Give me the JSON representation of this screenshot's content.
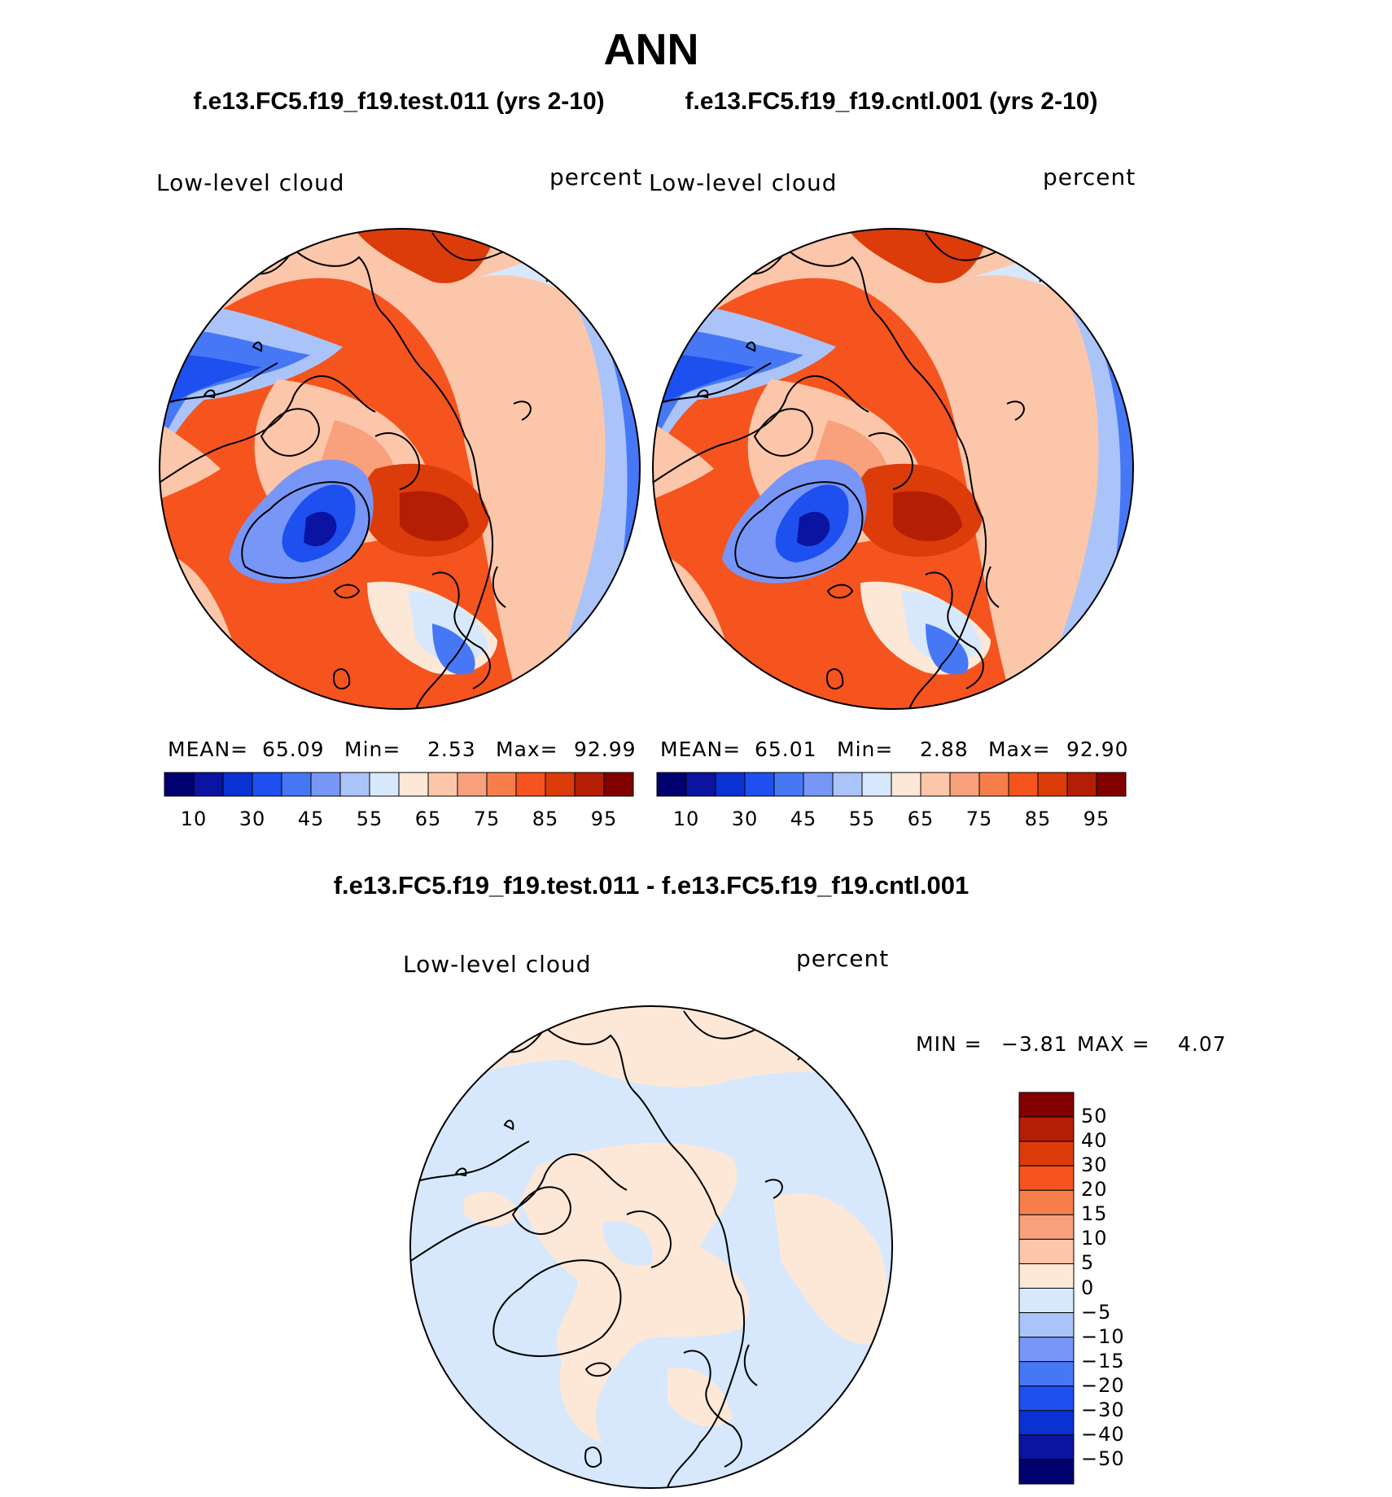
{
  "page_title": "ANN",
  "panels": [
    {
      "case_title": "f.e13.FC5.f19_f19.test.011 (yrs 2-10)",
      "field": "Low-level cloud",
      "units": "percent",
      "stats": {
        "mean_label": "MEAN=",
        "mean": "65.09",
        "min_label": "Min=",
        "min": "2.53",
        "max_label": "Max=",
        "max": "92.99"
      }
    },
    {
      "case_title": "f.e13.FC5.f19_f19.cntl.001 (yrs 2-10)",
      "field": "Low-level cloud",
      "units": "percent",
      "stats": {
        "mean_label": "MEAN=",
        "mean": "65.01",
        "min_label": "Min=",
        "min": "2.88",
        "max_label": "Max=",
        "max": "92.90"
      }
    }
  ],
  "abs_colorbar": {
    "colors": [
      "#00006e",
      "#0a14a0",
      "#0a32d2",
      "#1e50f0",
      "#4678f5",
      "#7896f7",
      "#aac4fa",
      "#d7e8fc",
      "#fde8d8",
      "#fcc6aa",
      "#f9a07d",
      "#f77e4a",
      "#f5541e",
      "#dc3c0a",
      "#b41e05",
      "#820000"
    ],
    "tick_labels": [
      "10",
      "30",
      "45",
      "55",
      "65",
      "75",
      "85",
      "95"
    ]
  },
  "diff_panel": {
    "title": "f.e13.FC5.f19_f19.test.011 - f.e13.FC5.f19_f19.cntl.001",
    "field": "Low-level cloud",
    "units": "percent",
    "stats": {
      "min_label": "MIN =",
      "min": "−3.81",
      "max_label": "MAX =",
      "max": "4.07"
    }
  },
  "diff_colorbar": {
    "colors": [
      "#820000",
      "#b41e05",
      "#dc3c0a",
      "#f5541e",
      "#f77e4a",
      "#f9a07d",
      "#fcc6aa",
      "#fde8d8",
      "#d7e8fc",
      "#aac4fa",
      "#7896f7",
      "#4678f5",
      "#1e50f0",
      "#0a32d2",
      "#0a14a0",
      "#00006e"
    ],
    "tick_labels": [
      "50",
      "40",
      "30",
      "20",
      "15",
      "10",
      "5",
      "0",
      "−5",
      "−10",
      "−15",
      "−20",
      "−30",
      "−40",
      "−50"
    ]
  }
}
